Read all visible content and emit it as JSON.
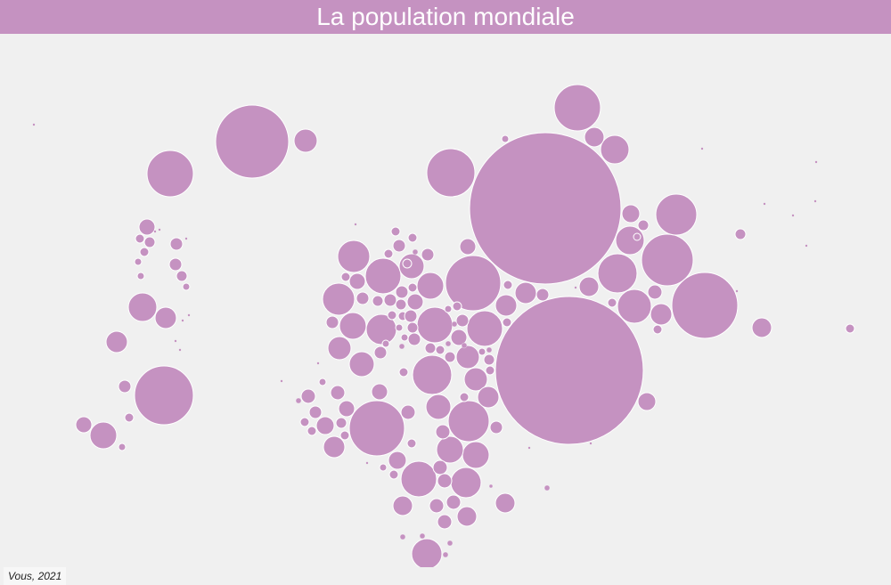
{
  "title": "La population mondiale",
  "source": "Vous, 2021",
  "colors": {
    "title_bar": "#c592c1",
    "bubble": "#c592c1",
    "bubble_stroke": "#ffffff",
    "background": "#f0f0f0"
  }
}
